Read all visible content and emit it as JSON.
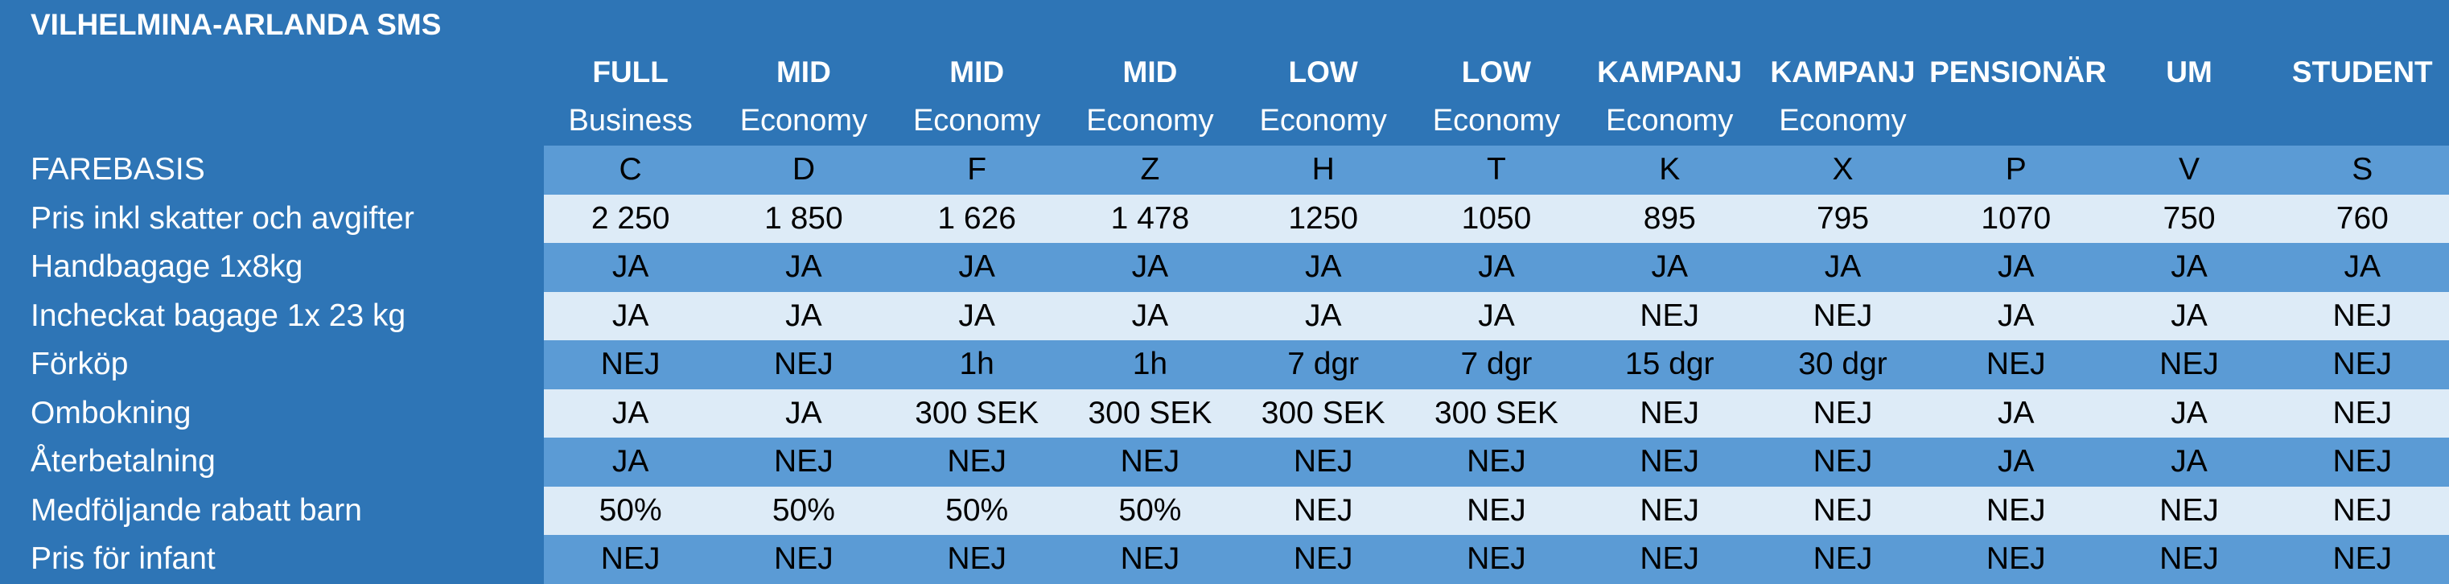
{
  "title": "VILHELMINA-ARLANDA SMS",
  "columns": [
    {
      "tier": "FULL",
      "cabin": "Business"
    },
    {
      "tier": "MID",
      "cabin": "Economy"
    },
    {
      "tier": "MID",
      "cabin": "Economy"
    },
    {
      "tier": "MID",
      "cabin": "Economy"
    },
    {
      "tier": "LOW",
      "cabin": "Economy"
    },
    {
      "tier": "LOW",
      "cabin": "Economy"
    },
    {
      "tier": "KAMPANJ",
      "cabin": "Economy"
    },
    {
      "tier": "KAMPANJ",
      "cabin": "Economy"
    },
    {
      "tier": "PENSIONÄR",
      "cabin": ""
    },
    {
      "tier": "UM",
      "cabin": ""
    },
    {
      "tier": "STUDENT",
      "cabin": ""
    }
  ],
  "rows": [
    {
      "label": "FAREBASIS",
      "values": [
        "C",
        "D",
        "F",
        "Z",
        "H",
        "T",
        "K",
        "X",
        "P",
        "V",
        "S"
      ]
    },
    {
      "label": "Pris inkl skatter och avgifter",
      "values": [
        "2 250",
        "1 850",
        "1 626",
        "1 478",
        "1250",
        "1050",
        "895",
        "795",
        "1070",
        "750",
        "760"
      ]
    },
    {
      "label": "Handbagage 1x8kg",
      "values": [
        "JA",
        "JA",
        "JA",
        "JA",
        "JA",
        "JA",
        "JA",
        "JA",
        "JA",
        "JA",
        "JA"
      ]
    },
    {
      "label": "Incheckat bagage 1x 23 kg",
      "values": [
        "JA",
        "JA",
        "JA",
        "JA",
        "JA",
        "JA",
        "NEJ",
        "NEJ",
        "JA",
        "JA",
        "NEJ"
      ]
    },
    {
      "label": "Förköp",
      "values": [
        "NEJ",
        "NEJ",
        "1h",
        "1h",
        "7 dgr",
        "7 dgr",
        "15 dgr",
        "30 dgr",
        "NEJ",
        "NEJ",
        "NEJ"
      ]
    },
    {
      "label": "Ombokning",
      "values": [
        "JA",
        "JA",
        "300 SEK",
        "300 SEK",
        "300 SEK",
        "300 SEK",
        "NEJ",
        "NEJ",
        "JA",
        "JA",
        "NEJ"
      ]
    },
    {
      "label": "Återbetalning",
      "values": [
        "JA",
        "NEJ",
        "NEJ",
        "NEJ",
        "NEJ",
        "NEJ",
        "NEJ",
        "NEJ",
        "JA",
        "JA",
        "NEJ"
      ]
    },
    {
      "label": "Medföljande rabatt barn",
      "values": [
        "50%",
        "50%",
        "50%",
        "50%",
        "NEJ",
        "NEJ",
        "NEJ",
        "NEJ",
        "NEJ",
        "NEJ",
        "NEJ"
      ]
    },
    {
      "label": "Pris för infant",
      "values": [
        "NEJ",
        "NEJ",
        "NEJ",
        "NEJ",
        "NEJ",
        "NEJ",
        "NEJ",
        "NEJ",
        "NEJ",
        "NEJ",
        "NEJ"
      ]
    }
  ],
  "colors": {
    "background": "#2e75b6",
    "dark_row": "#5b9bd5",
    "light_row": "#ddebf7"
  }
}
